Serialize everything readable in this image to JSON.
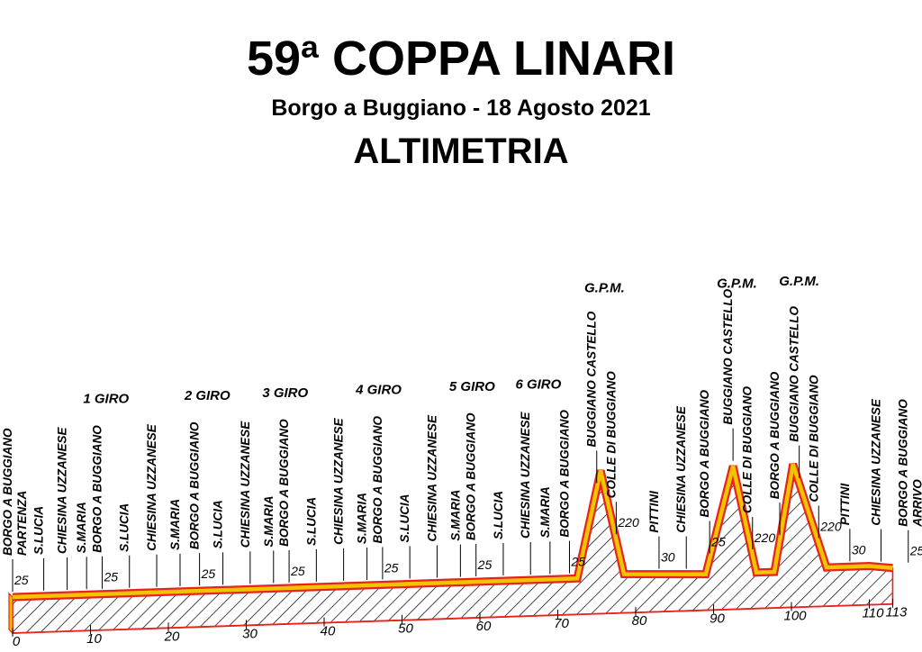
{
  "header": {
    "title": "59ª COPPA LINARI",
    "subtitle": "Borgo a Buggiano - 18 Agosto 2021",
    "heading": "ALTIMETRIA"
  },
  "colors": {
    "road_edge": "#e8231c",
    "road_top": "#f2c400",
    "hatch": "#000000",
    "text": "#000000"
  },
  "chart_data": {
    "type": "area",
    "title": "ALTIMETRIA",
    "x_unit": "km",
    "x_ticks": [
      0,
      10,
      20,
      30,
      40,
      50,
      60,
      70,
      80,
      90,
      100,
      110,
      113
    ],
    "profile": [
      {
        "km": 0,
        "alt": 25
      },
      {
        "km": 72.5,
        "alt": 25
      },
      {
        "km": 75.5,
        "alt": 220
      },
      {
        "km": 78.5,
        "alt": 30
      },
      {
        "km": 89,
        "alt": 25
      },
      {
        "km": 92.5,
        "alt": 220
      },
      {
        "km": 95.5,
        "alt": 25
      },
      {
        "km": 97.8,
        "alt": 25
      },
      {
        "km": 100.2,
        "alt": 220
      },
      {
        "km": 104.5,
        "alt": 30
      },
      {
        "km": 110,
        "alt": 30
      },
      {
        "km": 113,
        "alt": 25
      }
    ],
    "laps": [
      {
        "label": "1 GIRO",
        "km": 12
      },
      {
        "label": "2 GIRO",
        "km": 25
      },
      {
        "label": "3 GIRO",
        "km": 35
      },
      {
        "label": "4 GIRO",
        "km": 47
      },
      {
        "label": "5 GIRO",
        "km": 59
      },
      {
        "label": "6 GIRO",
        "km": 67.5
      }
    ],
    "gpm": [
      {
        "label": "G.P.M.",
        "km": 76
      },
      {
        "label": "G.P.M.",
        "km": 93
      },
      {
        "label": "G.P.M.",
        "km": 101
      }
    ],
    "places": [
      {
        "km": 0,
        "lines": [
          "BORGO A BUGGIANO",
          "PARTENZA"
        ],
        "alt_label": "25"
      },
      {
        "km": 4,
        "lines": [
          "S.LUCIA"
        ]
      },
      {
        "km": 7,
        "lines": [
          "CHIESINA UZZANESE"
        ]
      },
      {
        "km": 9.5,
        "lines": [
          "S.MARIA"
        ]
      },
      {
        "km": 11.5,
        "lines": [
          "BORGO A BUGGIANO"
        ],
        "alt_label": "25"
      },
      {
        "km": 15,
        "lines": [
          "S.LUCIA"
        ]
      },
      {
        "km": 18.5,
        "lines": [
          "CHIESINA UZZANESE"
        ]
      },
      {
        "km": 21.5,
        "lines": [
          "S.MARIA"
        ]
      },
      {
        "km": 24,
        "lines": [
          "BORGO A BUGGIANO"
        ],
        "alt_label": "25"
      },
      {
        "km": 27,
        "lines": [
          "S.LUCIA"
        ]
      },
      {
        "km": 30.5,
        "lines": [
          "CHIESINA UZZANESE"
        ]
      },
      {
        "km": 33.5,
        "lines": [
          "S.MARIA"
        ]
      },
      {
        "km": 35.5,
        "lines": [
          "BORGO A BUGGIANO"
        ],
        "alt_label": "25"
      },
      {
        "km": 39,
        "lines": [
          "S.LUCIA"
        ]
      },
      {
        "km": 42.5,
        "lines": [
          "CHIESINA UZZANESE"
        ]
      },
      {
        "km": 45.5,
        "lines": [
          "S.MARIA"
        ]
      },
      {
        "km": 47.5,
        "lines": [
          "BORGO A BUGGIANO"
        ],
        "alt_label": "25"
      },
      {
        "km": 51,
        "lines": [
          "S.LUCIA"
        ]
      },
      {
        "km": 54.5,
        "lines": [
          "CHIESINA UZZANESE"
        ]
      },
      {
        "km": 57.5,
        "lines": [
          "S.MARIA"
        ]
      },
      {
        "km": 59.5,
        "lines": [
          "BORGO A BUGGIANO"
        ],
        "alt_label": "25"
      },
      {
        "km": 63,
        "lines": [
          "S.LUCIA"
        ]
      },
      {
        "km": 66.5,
        "lines": [
          "CHIESINA UZZANESE"
        ]
      },
      {
        "km": 69,
        "lines": [
          "S.MARIA"
        ]
      },
      {
        "km": 71.5,
        "lines": [
          "BORGO A BUGGIANO"
        ],
        "alt_label": "25"
      },
      {
        "km": 75,
        "lines": [
          "BUGGIANO CASTELLO"
        ]
      },
      {
        "km": 77.5,
        "lines": [
          "COLLE DI BUGGIANO"
        ],
        "alt_label": "220"
      },
      {
        "km": 83,
        "lines": [
          "PITTINI"
        ],
        "alt_label": "30"
      },
      {
        "km": 86.5,
        "lines": [
          "CHIESINA UZZANESE"
        ]
      },
      {
        "km": 89.5,
        "lines": [
          "BORGO A BUGGIANO"
        ],
        "alt_label": "25"
      },
      {
        "km": 92.5,
        "lines": [
          "BUGGIANO CASTELLO"
        ]
      },
      {
        "km": 95,
        "lines": [
          "COLLE DI BUGGIANO"
        ],
        "alt_label": "220"
      },
      {
        "km": 98.5,
        "lines": [
          "BORGO A BUGGIANO"
        ]
      },
      {
        "km": 101,
        "lines": [
          "BUGGIANO CASTELLO"
        ]
      },
      {
        "km": 103.5,
        "lines": [
          "COLLE DI BUGGIANO"
        ],
        "alt_label": "220"
      },
      {
        "km": 107.5,
        "lines": [
          "PITTINI"
        ],
        "alt_label": "30"
      },
      {
        "km": 111.5,
        "lines": [
          "CHIESINA UZZANESE"
        ]
      },
      {
        "km": 115,
        "lines": [
          "BORGO A BUGGIANO",
          "ARRIVO"
        ],
        "alt_label": "25"
      }
    ]
  }
}
